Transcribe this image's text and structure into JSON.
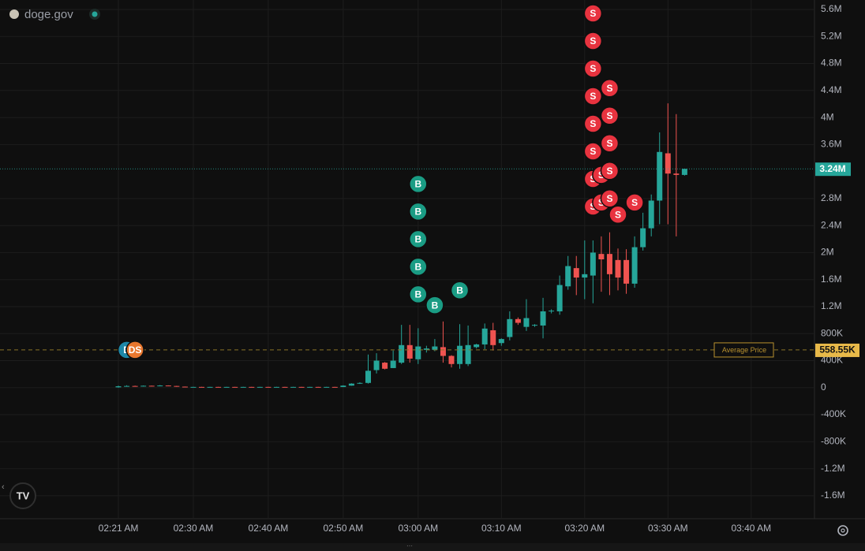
{
  "chart_data": {
    "type": "candlestick",
    "title": "doge.gov",
    "categories": [
      "02:21 AM",
      null,
      null,
      null,
      null,
      null,
      null,
      null,
      null,
      "02:30 AM",
      null,
      null,
      null,
      null,
      null,
      null,
      null,
      null,
      "02:40 AM",
      null,
      null,
      null,
      null,
      null,
      null,
      null,
      null,
      "02:50 AM",
      null,
      null,
      null,
      null,
      null,
      null,
      null,
      null,
      "03:00 AM",
      null,
      null,
      null,
      null,
      null,
      null,
      null,
      null,
      null,
      "03:10 AM",
      null,
      null,
      null,
      null,
      null,
      null,
      null,
      null,
      null,
      "03:20 AM",
      null,
      null,
      null,
      null,
      null,
      null,
      null,
      null,
      null,
      "03:30 AM",
      null,
      null,
      null,
      null,
      null,
      null,
      null,
      null,
      null,
      "03:40 AM"
    ],
    "open": [
      5000,
      20000,
      25000,
      20000,
      28000,
      22000,
      32000,
      25000,
      15000,
      10000,
      11000,
      10000,
      11000,
      10000,
      11000,
      10000,
      11000,
      10000,
      11000,
      10000,
      11000,
      10000,
      11000,
      10000,
      11000,
      10000,
      11000,
      10000,
      30000,
      60000,
      70000,
      260000,
      370000,
      290000,
      370000,
      630000,
      420000,
      560000,
      560000,
      600000,
      470000,
      350000,
      350000,
      600000,
      640000,
      850000,
      660000,
      750000,
      1015000,
      900000,
      920000,
      920000,
      1130000,
      1130000,
      1500000,
      1770000,
      1630000,
      1660000,
      1980000,
      1980000,
      1890000,
      1890000,
      1540000,
      2080000,
      2360000,
      2770000,
      3470000,
      3170000,
      3150000,
      null,
      null,
      null,
      null,
      null,
      null,
      null,
      null
    ],
    "high": [
      30000,
      35000,
      30000,
      32000,
      30000,
      38000,
      34000,
      27000,
      17000,
      12000,
      12000,
      12000,
      12000,
      12000,
      12000,
      12000,
      12000,
      12000,
      12000,
      12000,
      12000,
      12000,
      12000,
      12000,
      12000,
      12000,
      12000,
      35000,
      65000,
      80000,
      490000,
      510000,
      380000,
      550000,
      930000,
      930000,
      880000,
      620000,
      720000,
      980000,
      480000,
      940000,
      920000,
      650000,
      950000,
      960000,
      730000,
      1130000,
      1040000,
      1310000,
      940000,
      1330000,
      1160000,
      1660000,
      1950000,
      1950000,
      2180000,
      2180000,
      2240000,
      2300000,
      2060000,
      2050000,
      2240000,
      2590000,
      2860000,
      3780000,
      4210000,
      4050000,
      3240000,
      null,
      null,
      null,
      null,
      null,
      null,
      null,
      null
    ],
    "low": [
      0,
      15000,
      18000,
      18000,
      20000,
      20000,
      22000,
      12000,
      8000,
      8000,
      9000,
      8000,
      9000,
      8000,
      9000,
      8000,
      9000,
      8000,
      9000,
      8000,
      9000,
      8000,
      9000,
      8000,
      9000,
      8000,
      9000,
      8000,
      28000,
      55000,
      60000,
      210000,
      270000,
      290000,
      350000,
      370000,
      350000,
      520000,
      540000,
      370000,
      300000,
      280000,
      320000,
      580000,
      570000,
      550000,
      620000,
      700000,
      930000,
      840000,
      900000,
      730000,
      1100000,
      1080000,
      1450000,
      1370000,
      1310000,
      1250000,
      1420000,
      1370000,
      1440000,
      1390000,
      1480000,
      2030000,
      2240000,
      2420000,
      2420000,
      2240000,
      3140000,
      null,
      null,
      null,
      null,
      null,
      null,
      null,
      null
    ],
    "close": [
      20000,
      25000,
      20000,
      28000,
      22000,
      32000,
      25000,
      15000,
      10000,
      11000,
      10000,
      11000,
      10000,
      11000,
      10000,
      11000,
      10000,
      11000,
      10000,
      11000,
      10000,
      11000,
      10000,
      11000,
      10000,
      11000,
      10000,
      30000,
      60000,
      70000,
      250000,
      400000,
      280000,
      400000,
      630000,
      430000,
      610000,
      580000,
      610000,
      470000,
      350000,
      620000,
      630000,
      640000,
      875000,
      630000,
      720000,
      1015000,
      960000,
      1030000,
      930000,
      1130000,
      1140000,
      1520000,
      1800000,
      1630000,
      1680000,
      2000000,
      1900000,
      1680000,
      1630000,
      1540000,
      2080000,
      2360000,
      2770000,
      3490000,
      3170000,
      3150000,
      3240000,
      null,
      null,
      null,
      null,
      null,
      null,
      null,
      null
    ],
    "up_color": "#26a69a",
    "down_color": "#ef5350",
    "ylim": [
      -1940000,
      5740000
    ],
    "yticks": [
      {
        "value": 5600000,
        "label": "5.6M"
      },
      {
        "value": 5200000,
        "label": "5.2M"
      },
      {
        "value": 4800000,
        "label": "4.8M"
      },
      {
        "value": 4400000,
        "label": "4.4M"
      },
      {
        "value": 4000000,
        "label": "4M"
      },
      {
        "value": 3600000,
        "label": "3.6M"
      },
      {
        "value": 2800000,
        "label": "2.8M"
      },
      {
        "value": 2400000,
        "label": "2.4M"
      },
      {
        "value": 2000000,
        "label": "2M"
      },
      {
        "value": 1600000,
        "label": "1.6M"
      },
      {
        "value": 1200000,
        "label": "1.2M"
      },
      {
        "value": 800000,
        "label": "800K"
      },
      {
        "value": 400000,
        "label": "400K"
      },
      0,
      {
        "value": -400000,
        "label": "-400K"
      },
      {
        "value": -800000,
        "label": "-800K"
      },
      {
        "value": -1200000,
        "label": "-1.2M"
      },
      {
        "value": -1600000,
        "label": "-1.6M"
      }
    ],
    "grid": true,
    "current_price": {
      "value": 3240000,
      "label": "3.24M"
    },
    "average_price": {
      "value": 558550,
      "label": "558.55K",
      "name": "Average Price"
    },
    "markers": [
      {
        "text": "B",
        "index": 36,
        "count": 5,
        "color": "#1a9c84"
      },
      {
        "text": "B",
        "index": 38,
        "count": 1,
        "color": "#1a9c84"
      },
      {
        "text": "B",
        "index": 41,
        "count": 1,
        "color": "#1a9c84"
      },
      {
        "text": "S",
        "index": 57,
        "count": 8,
        "color": "#e8333f"
      },
      {
        "text": "S",
        "index": 58,
        "count": 2,
        "color": "#e8333f"
      },
      {
        "text": "S",
        "index": 59,
        "count": 5,
        "color": "#e8333f"
      },
      {
        "text": "S",
        "index": 60,
        "count": 1,
        "color": "#e8333f"
      },
      {
        "text": "S",
        "index": 62,
        "count": 1,
        "color": "#e8333f"
      }
    ],
    "dev_markers": [
      {
        "text": "D",
        "index": 1,
        "color": "#1e88a8"
      },
      {
        "text": "DS",
        "index": 2,
        "color": "#e8772e"
      }
    ]
  }
}
